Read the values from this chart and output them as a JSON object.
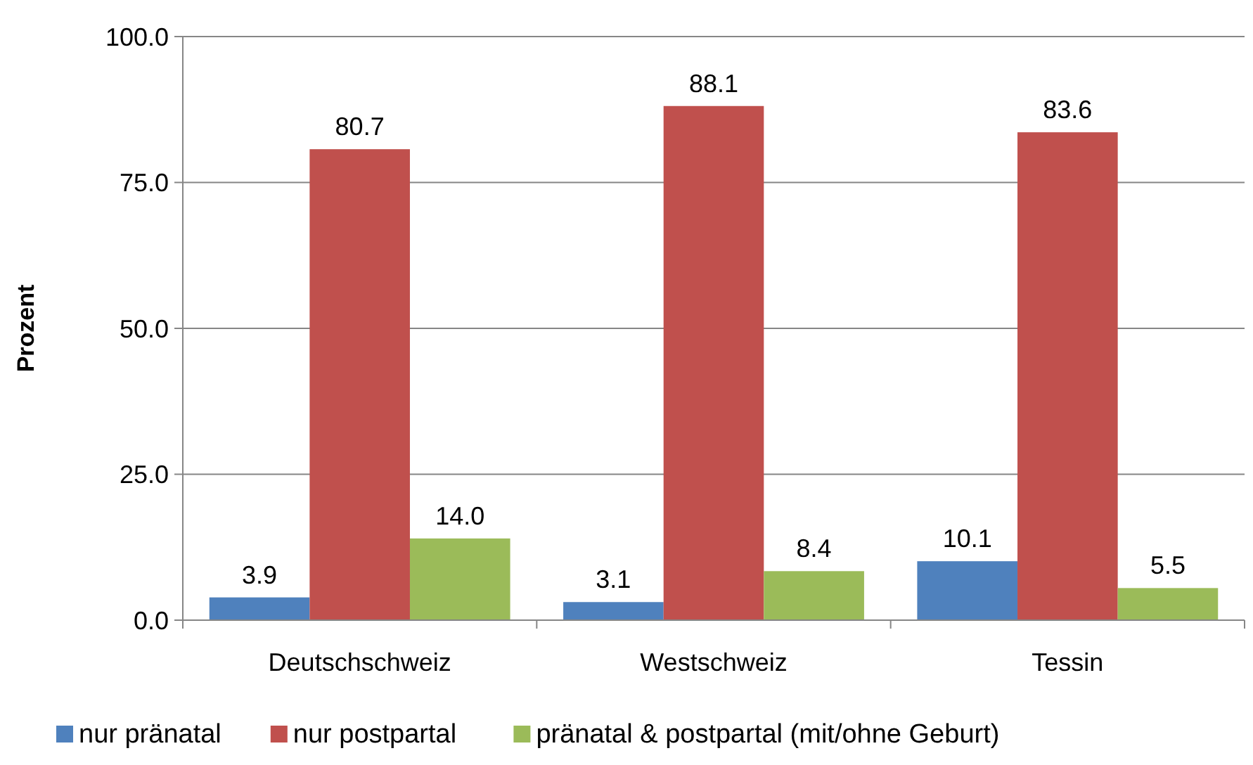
{
  "chart_data": {
    "type": "bar",
    "ylabel": "Prozent",
    "categories": [
      "Deutschschweiz",
      "Westschweiz",
      "Tessin"
    ],
    "series": [
      {
        "name": "nur pränatal",
        "color": "#4f81bd",
        "values": [
          3.9,
          3.1,
          10.1
        ],
        "value_labels": [
          "3.9",
          "3.1",
          "10.1"
        ]
      },
      {
        "name": "nur postpartal",
        "color": "#c0504d",
        "values": [
          80.7,
          88.1,
          83.6
        ],
        "value_labels": [
          "80.7",
          "88.1",
          "83.6"
        ]
      },
      {
        "name": "pränatal & postpartal (mit/ohne Geburt)",
        "color": "#9bbb59",
        "values": [
          14.0,
          8.4,
          5.5
        ],
        "value_labels": [
          "14.0",
          "8.4",
          "5.5"
        ]
      }
    ],
    "ylim": [
      0,
      100
    ],
    "yticks": [
      {
        "value": 0,
        "label": "0.0"
      },
      {
        "value": 25,
        "label": "25.0"
      },
      {
        "value": 50,
        "label": "50.0"
      },
      {
        "value": 75,
        "label": "75.0"
      },
      {
        "value": 100,
        "label": "100.0"
      }
    ],
    "grid": "y",
    "legend": "bottom"
  }
}
